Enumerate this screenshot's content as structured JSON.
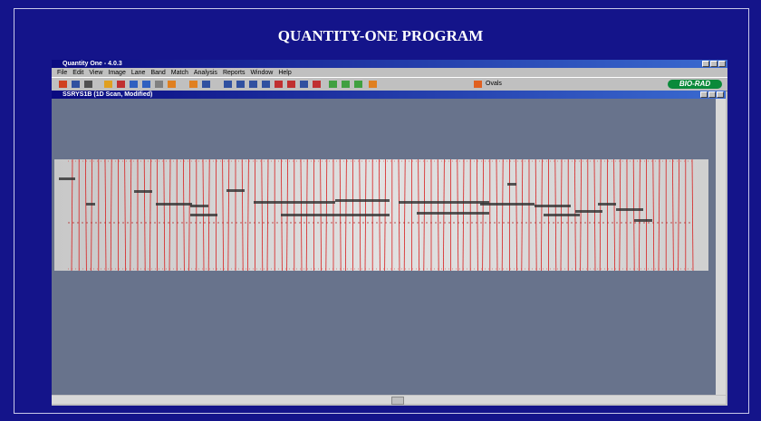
{
  "slide_title": "QUANTITY-ONE PROGRAM",
  "app": {
    "title": "Quantity One - 4.0.3",
    "menu": [
      "File",
      "Edit",
      "View",
      "Image",
      "Lane",
      "Band",
      "Match",
      "Analysis",
      "Reports",
      "Window",
      "Help"
    ],
    "toolbar_label": "Ovals",
    "logo": "BIO-RAD"
  },
  "document": {
    "title": "SSRYS1B (1D Scan, Modified)"
  }
}
